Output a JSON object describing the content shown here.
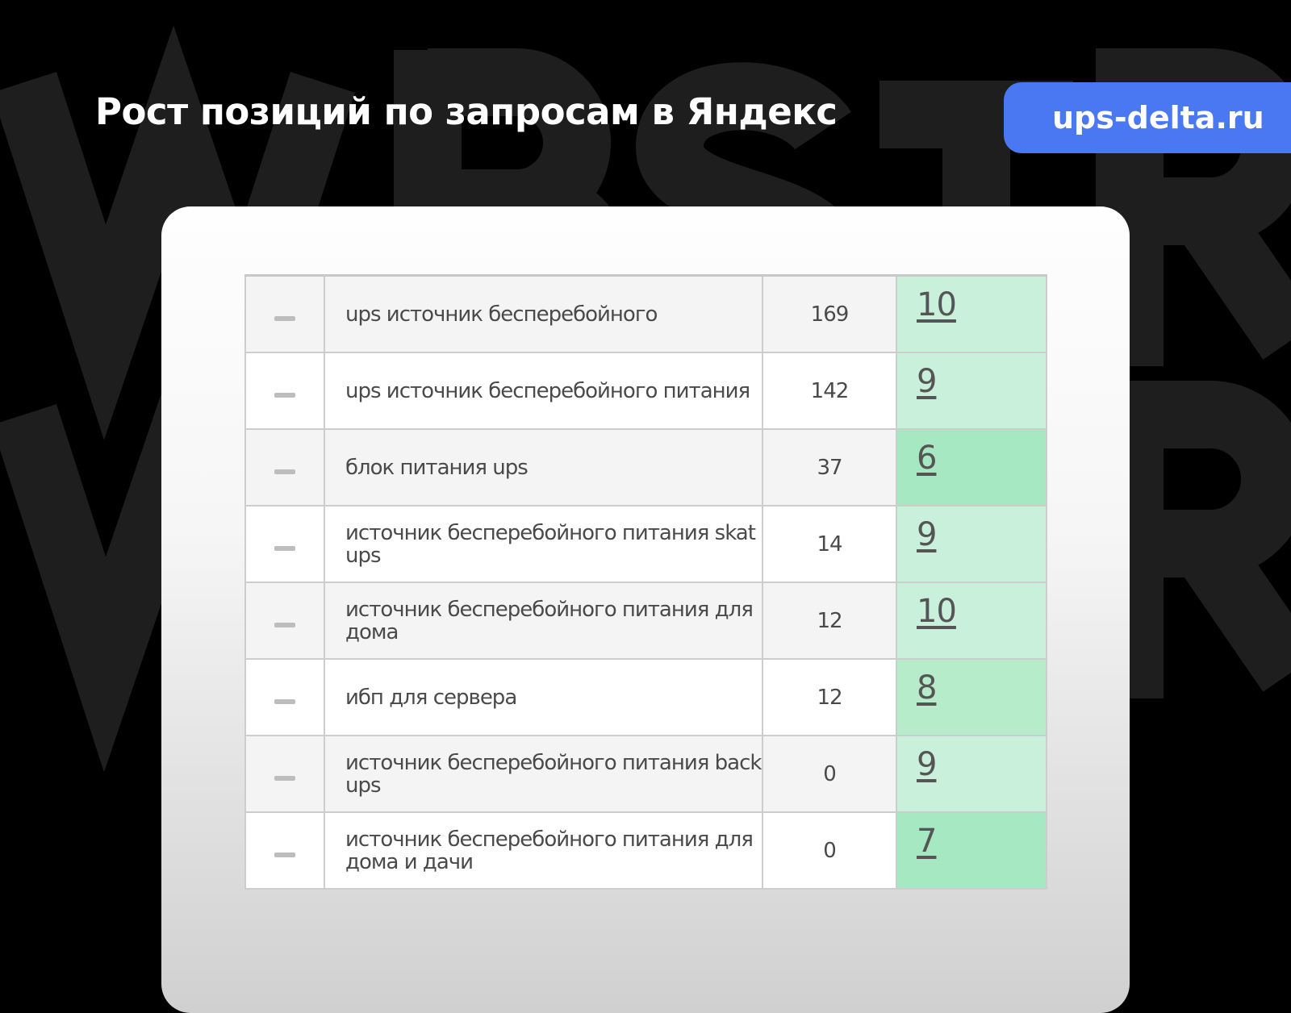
{
  "watermark": [
    "WBSTR",
    "WBSTR"
  ],
  "title": "Рост позиций по запросам в Яндекс",
  "site_badge": "ups-delta.ru",
  "colors": {
    "badge": "#4a78f2",
    "position_light": "#c8f0da",
    "position_dark": "#a6e8c2"
  },
  "rows": [
    {
      "query": "ups источник бесперебойного",
      "frequency": "169",
      "position": "10",
      "shade": "#c8f0da"
    },
    {
      "query": "ups источник бесперебойного питания",
      "frequency": "142",
      "position": "9",
      "shade": "#c8f0da"
    },
    {
      "query": "блок питания ups",
      "frequency": "37",
      "position": "6",
      "shade": "#a6e8c2"
    },
    {
      "query": "источник бесперебойного питания skat ups",
      "frequency": "14",
      "position": "9",
      "shade": "#c8f0da"
    },
    {
      "query": "источник бесперебойного питания для дома",
      "frequency": "12",
      "position": "10",
      "shade": "#c8f0da"
    },
    {
      "query": "ибп для сервера",
      "frequency": "12",
      "position": "8",
      "shade": "#b6ecca"
    },
    {
      "query": "источник бесперебойного питания back ups",
      "frequency": "0",
      "position": "9",
      "shade": "#c8f0da"
    },
    {
      "query": "источник бесперебойного питания для дома и дачи",
      "frequency": "0",
      "position": "7",
      "shade": "#a6e8c2"
    }
  ]
}
